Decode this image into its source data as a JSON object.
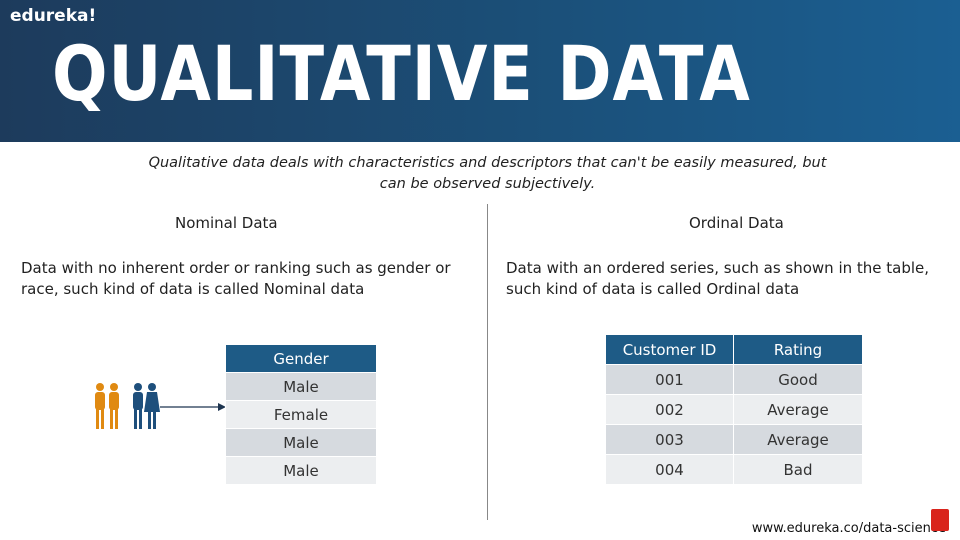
{
  "header": {
    "brand": "edureka!",
    "title": "QUALITATIVE DATA"
  },
  "intro": {
    "line1": "Qualitative data deals with characteristics and descriptors that can't be easily measured, but",
    "line2": "can be observed subjectively."
  },
  "nominal": {
    "title": "Nominal Data",
    "description": "Data with no inherent order or ranking such as gender or race, such kind of data is called Nominal data",
    "table": {
      "header": "Gender",
      "rows": [
        "Male",
        "Female",
        "Male",
        "Male"
      ]
    }
  },
  "ordinal": {
    "title": "Ordinal Data",
    "description": "Data with an ordered series, such as shown in the table, such kind of data is called Ordinal data",
    "table": {
      "headers": [
        "Customer ID",
        "Rating"
      ],
      "rows": [
        [
          "001",
          "Good"
        ],
        [
          "002",
          "Average"
        ],
        [
          "003",
          "Average"
        ],
        [
          "004",
          "Bad"
        ]
      ]
    }
  },
  "icons": {
    "people": "people-group-icon",
    "arrow": "arrow-right-icon",
    "subscribe": "subscribe-icon"
  },
  "colors": {
    "header_bg": "#1b4f78",
    "table_header": "#1e5b86",
    "person_orange": "#e08a12",
    "person_blue": "#1e4f7c"
  },
  "footer": {
    "url": "www.edureka.co/data-science"
  }
}
